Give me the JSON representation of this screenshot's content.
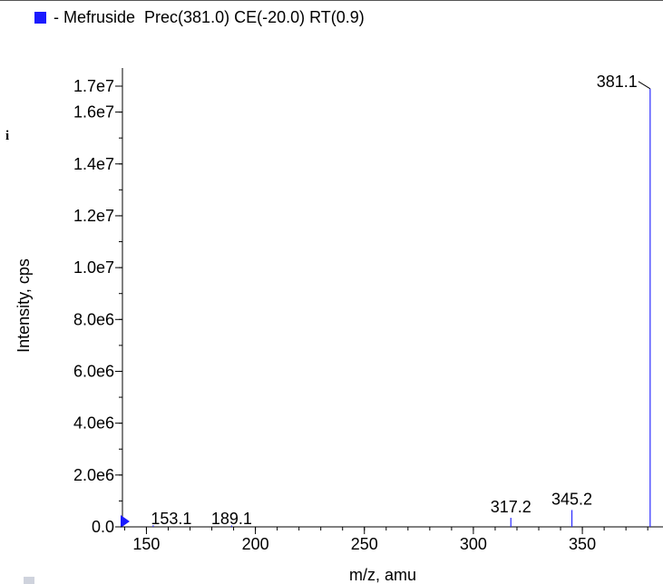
{
  "legend": {
    "label": "- Mefruside  Prec(381.0) CE(-20.0) RT(0.9)",
    "color": "#1a1aff"
  },
  "side_label": "i",
  "chart_data": {
    "type": "bar",
    "xlabel": "m/z, amu",
    "ylabel": "Intensity, cps",
    "xlim": [
      139,
      387
    ],
    "ylim": [
      0,
      17500000
    ],
    "x_ticks": [
      150,
      200,
      250,
      300,
      350
    ],
    "y_ticks": [
      {
        "value": 0,
        "label": "0.0"
      },
      {
        "value": 2000000,
        "label": "2.0e6"
      },
      {
        "value": 4000000,
        "label": "4.0e6"
      },
      {
        "value": 6000000,
        "label": "6.0e6"
      },
      {
        "value": 8000000,
        "label": "8.0e6"
      },
      {
        "value": 10000000,
        "label": "1.0e7"
      },
      {
        "value": 12000000,
        "label": "1.2e7"
      },
      {
        "value": 14000000,
        "label": "1.4e7"
      },
      {
        "value": 16000000,
        "label": "1.6e7"
      },
      {
        "value": 17000000,
        "label": "1.7e7"
      }
    ],
    "series_color": "#2a2aff",
    "peaks": [
      {
        "mz": 153.1,
        "intensity": 60000,
        "label": "153.1"
      },
      {
        "mz": 189.1,
        "intensity": 50000,
        "label": "189.1"
      },
      {
        "mz": 317.2,
        "intensity": 350000,
        "label": "317.2"
      },
      {
        "mz": 345.2,
        "intensity": 650000,
        "label": "345.2"
      },
      {
        "mz": 381.1,
        "intensity": 16900000,
        "label": "381.1"
      }
    ]
  }
}
